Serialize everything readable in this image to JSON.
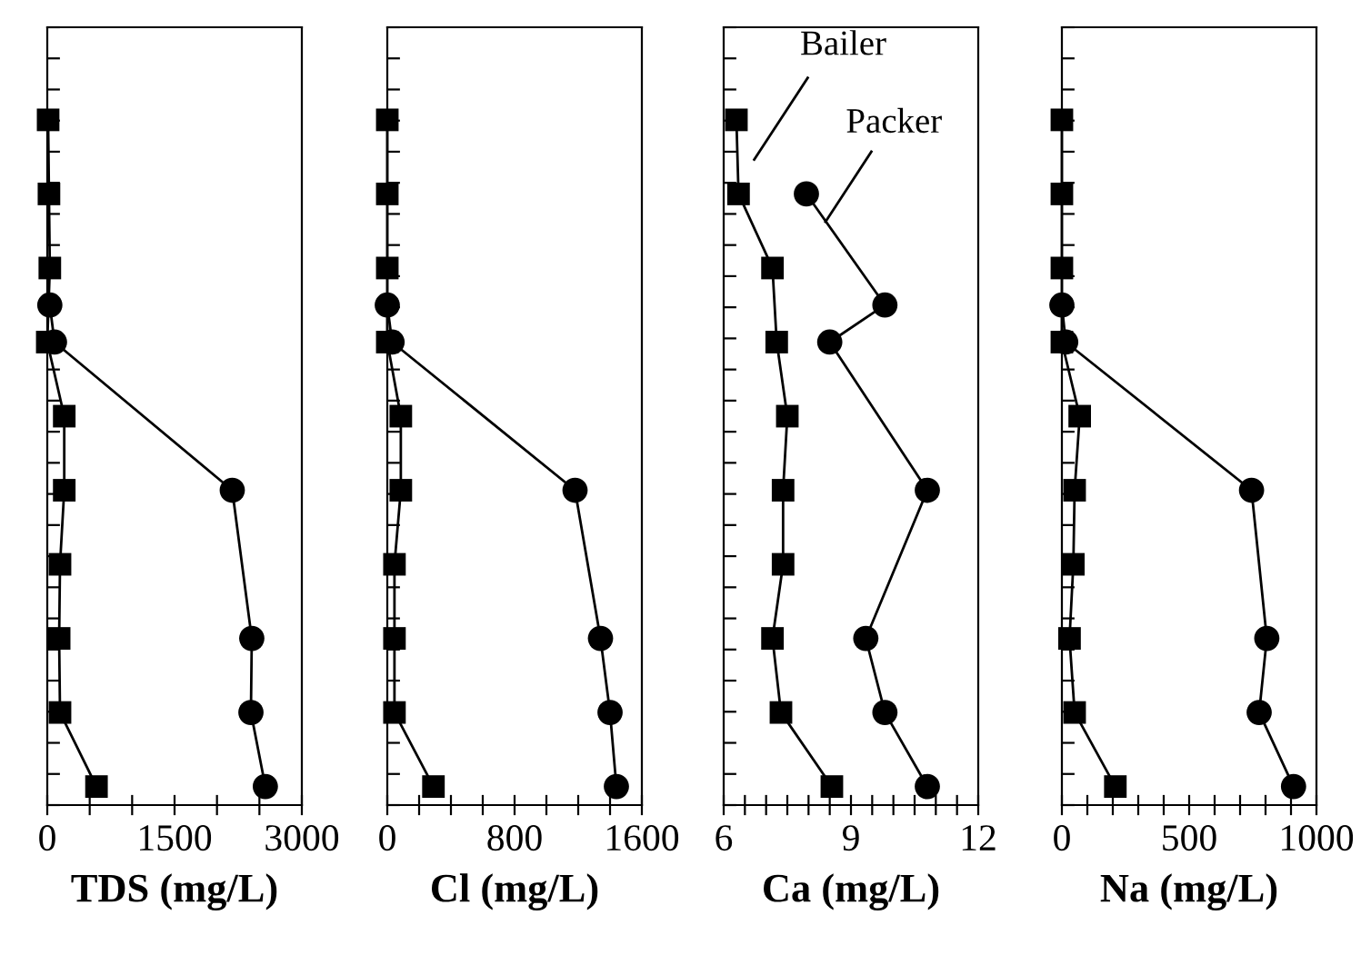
{
  "chart_data": [
    {
      "type": "line",
      "orientation": "horizontal",
      "xlabel": "TDS (mg/L)",
      "xlim": [
        0,
        3000
      ],
      "xticks": [
        0,
        {
          "value": 500,
          "label": null
        },
        {
          "value": 1000,
          "label": null
        },
        1500,
        {
          "value": 2000,
          "label": null
        },
        {
          "value": 2500,
          "label": null
        },
        3000
      ],
      "tick_labels": "x",
      "grid": false,
      "legend": false,
      "line_style": "solid",
      "categories": [
        null,
        null,
        null,
        null,
        null,
        null,
        null,
        null,
        null,
        null,
        null,
        null,
        null,
        null,
        null,
        null,
        null,
        null,
        null,
        null,
        null
      ],
      "series": [
        {
          "color": "#000000",
          "marker": "square",
          "values": [
            null,
            null,
            10,
            null,
            20,
            null,
            30,
            null,
            0,
            null,
            200,
            null,
            200,
            null,
            150,
            null,
            140,
            null,
            150,
            null,
            580
          ]
        },
        {
          "color": "#000000",
          "marker": "circle",
          "values": [
            null,
            null,
            null,
            null,
            null,
            null,
            null,
            30,
            85,
            null,
            null,
            null,
            2180,
            null,
            null,
            null,
            2410,
            null,
            2400,
            null,
            2570
          ]
        }
      ]
    },
    {
      "type": "line",
      "orientation": "horizontal",
      "xlabel": "Cl (mg/L)",
      "xlim": [
        0,
        1600
      ],
      "xticks": [
        0,
        {
          "value": 200,
          "label": null
        },
        {
          "value": 400,
          "label": null
        },
        {
          "value": 600,
          "label": null
        },
        800,
        {
          "value": 1000,
          "label": null
        },
        {
          "value": 1200,
          "label": null
        },
        {
          "value": 1400,
          "label": null
        },
        1600
      ],
      "tick_labels": "x",
      "grid": false,
      "legend": false,
      "line_style": "solid",
      "categories": [
        null,
        null,
        null,
        null,
        null,
        null,
        null,
        null,
        null,
        null,
        null,
        null,
        null,
        null,
        null,
        null,
        null,
        null,
        null,
        null,
        null
      ],
      "series": [
        {
          "color": "#000000",
          "marker": "square",
          "values": [
            null,
            null,
            0,
            null,
            0,
            null,
            0,
            null,
            0,
            null,
            85,
            null,
            85,
            null,
            45,
            null,
            45,
            null,
            45,
            null,
            290
          ]
        },
        {
          "color": "#000000",
          "marker": "circle",
          "values": [
            null,
            null,
            null,
            null,
            null,
            null,
            null,
            0,
            30,
            null,
            null,
            null,
            1180,
            null,
            null,
            null,
            1340,
            null,
            1400,
            null,
            1440
          ]
        }
      ]
    },
    {
      "type": "line",
      "orientation": "horizontal",
      "xlabel": "Ca (mg/L)",
      "xlim": [
        6,
        12
      ],
      "xticks": [
        6,
        {
          "value": 6.5,
          "label": null
        },
        {
          "value": 7,
          "label": null
        },
        {
          "value": 7.5,
          "label": null
        },
        {
          "value": 8,
          "label": null
        },
        {
          "value": 8.5,
          "label": null
        },
        9,
        {
          "value": 9.5,
          "label": null
        },
        {
          "value": 10,
          "label": null
        },
        {
          "value": 10.5,
          "label": null
        },
        {
          "value": 11,
          "label": null
        },
        {
          "value": 11.5,
          "label": null
        },
        12
      ],
      "tick_labels": "x",
      "grid": false,
      "legend": false,
      "line_style": "solid",
      "annotations": [
        "Bailer",
        "Packer"
      ],
      "categories": [
        null,
        null,
        null,
        null,
        null,
        null,
        null,
        null,
        null,
        null,
        null,
        null,
        null,
        null,
        null,
        null,
        null,
        null,
        null,
        null,
        null
      ],
      "series": [
        {
          "color": "#000000",
          "marker": "square",
          "values": [
            null,
            null,
            6.3,
            null,
            6.35,
            null,
            7.15,
            null,
            7.25,
            null,
            7.5,
            null,
            7.4,
            null,
            7.4,
            null,
            7.15,
            null,
            7.35,
            null,
            8.55
          ]
        },
        {
          "color": "#000000",
          "marker": "circle",
          "values": [
            null,
            null,
            null,
            null,
            7.95,
            null,
            null,
            9.8,
            8.5,
            null,
            null,
            null,
            10.8,
            null,
            null,
            null,
            9.35,
            null,
            9.8,
            null,
            10.8
          ]
        }
      ]
    },
    {
      "type": "line",
      "orientation": "horizontal",
      "xlabel": "Na (mg/L)",
      "xlim": [
        0,
        1000
      ],
      "xticks": [
        0,
        {
          "value": 100,
          "label": null
        },
        {
          "value": 200,
          "label": null
        },
        {
          "value": 300,
          "label": null
        },
        {
          "value": 400,
          "label": null
        },
        500,
        {
          "value": 600,
          "label": null
        },
        {
          "value": 700,
          "label": null
        },
        {
          "value": 800,
          "label": null
        },
        {
          "value": 900,
          "label": null
        },
        1000
      ],
      "tick_labels": "x",
      "grid": false,
      "legend": false,
      "line_style": "solid",
      "categories": [
        null,
        null,
        null,
        null,
        null,
        null,
        null,
        null,
        null,
        null,
        null,
        null,
        null,
        null,
        null,
        null,
        null,
        null,
        null,
        null,
        null
      ],
      "series": [
        {
          "color": "#000000",
          "marker": "square",
          "values": [
            null,
            null,
            0,
            null,
            0,
            null,
            0,
            null,
            0,
            null,
            70,
            null,
            50,
            null,
            45,
            null,
            30,
            null,
            50,
            null,
            210
          ]
        },
        {
          "color": "#000000",
          "marker": "circle",
          "values": [
            null,
            null,
            null,
            null,
            null,
            null,
            null,
            0,
            15,
            null,
            null,
            null,
            745,
            null,
            null,
            null,
            805,
            null,
            775,
            null,
            910
          ]
        }
      ]
    }
  ]
}
